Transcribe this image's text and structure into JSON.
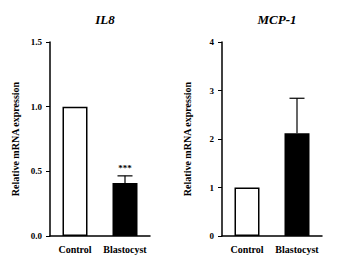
{
  "chart_data": [
    {
      "type": "bar",
      "title": "IL8",
      "y_label": "Relative mRNA expression",
      "categories": [
        "Control",
        "Blastocyst"
      ],
      "values": [
        1.0,
        0.41
      ],
      "errors": [
        0,
        0.055
      ],
      "colors": [
        "#ffffff",
        "#000000"
      ],
      "ylim": [
        0,
        1.5
      ],
      "yticks": [
        {
          "value": 0,
          "label": "0.0"
        },
        0.5,
        {
          "value": 1,
          "label": "1.0"
        },
        1.5
      ],
      "annotation": {
        "text": "***",
        "category": "Blastocyst"
      },
      "grid": false
    },
    {
      "type": "bar",
      "title": "MCP-1",
      "y_label": "Relative mRNA expression",
      "categories": [
        "Control",
        "Blastocyst"
      ],
      "values": [
        1.0,
        2.12
      ],
      "errors": [
        0,
        0.72
      ],
      "colors": [
        "#ffffff",
        "#000000"
      ],
      "ylim": [
        0,
        4
      ],
      "yticks": [
        0,
        1,
        2,
        3,
        4
      ],
      "grid": false
    }
  ]
}
